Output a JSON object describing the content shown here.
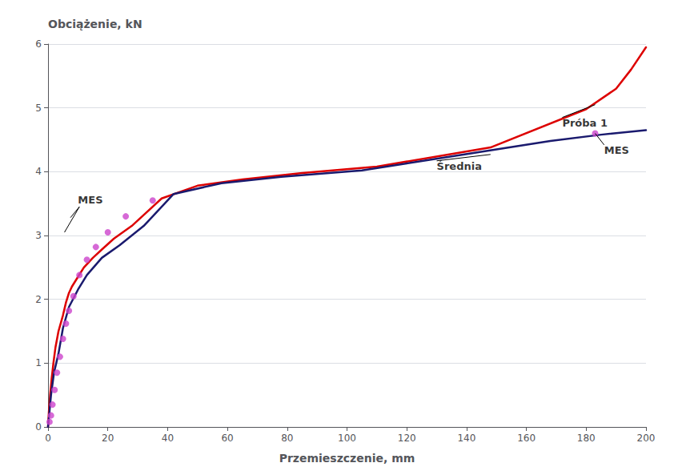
{
  "chart_data": {
    "type": "line",
    "x_label": "Przemieszczenie, mm",
    "y_label": "Obciążenie, kN",
    "xlim": [
      0,
      200
    ],
    "ylim": [
      0,
      6
    ],
    "xticks": [
      0,
      20,
      40,
      60,
      80,
      100,
      120,
      140,
      160,
      180,
      200
    ],
    "yticks": [
      0,
      1,
      2,
      3,
      4,
      5,
      6
    ],
    "grid": true,
    "series": [
      {
        "type": "line",
        "color": "#dd0000",
        "x": [
          0,
          0.3,
          0.7,
          1.2,
          1.8,
          2.5,
          3.5,
          5,
          6,
          7,
          8,
          10,
          12,
          15,
          18,
          22,
          28,
          38,
          50,
          65,
          85,
          110,
          148,
          180,
          190,
          195,
          200
        ],
        "values": [
          0,
          0.25,
          0.5,
          0.75,
          1.0,
          1.25,
          1.5,
          1.75,
          1.95,
          2.1,
          2.2,
          2.35,
          2.5,
          2.65,
          2.78,
          2.95,
          3.15,
          3.58,
          3.78,
          3.88,
          3.98,
          4.08,
          4.38,
          4.98,
          5.3,
          5.6,
          5.95
        ]
      },
      {
        "type": "line",
        "color": "#1a1a6e",
        "x": [
          0,
          0.5,
          1,
          2,
          3.5,
          5,
          7,
          10,
          13,
          18,
          24,
          32,
          42,
          58,
          78,
          105,
          135,
          168,
          185,
          200
        ],
        "values": [
          0,
          0.25,
          0.5,
          0.85,
          1.15,
          1.55,
          1.88,
          2.15,
          2.38,
          2.65,
          2.85,
          3.15,
          3.65,
          3.82,
          3.92,
          4.02,
          4.24,
          4.48,
          4.58,
          4.65
        ]
      },
      {
        "type": "scatter",
        "color": "#cc44cc",
        "marker": "circle",
        "x": [
          0.5,
          1.0,
          1.5,
          2.2,
          3.0,
          4.0,
          5.0,
          6.0,
          7.0,
          8.5,
          10.5,
          13,
          16,
          20,
          26,
          35
        ],
        "values": [
          0.08,
          0.18,
          0.35,
          0.58,
          0.85,
          1.1,
          1.38,
          1.62,
          1.82,
          2.05,
          2.38,
          2.62,
          2.82,
          3.05,
          3.3,
          3.55
        ]
      },
      {
        "type": "scatter",
        "color": "#cc44cc",
        "marker": "circle",
        "x": [
          183
        ],
        "values": [
          4.6
        ]
      }
    ],
    "annotations": [
      {
        "text": "Próba 1",
        "x": 172,
        "y": 4.85,
        "lines": [
          {
            "from": [
              172,
              4.85
            ],
            "to": [
              183,
              5.05
            ]
          }
        ]
      },
      {
        "text": "Średnia",
        "x": 130,
        "y": 4.17,
        "lines": [
          {
            "from": [
              130,
              4.17
            ],
            "to": [
              148,
              4.27
            ]
          }
        ]
      },
      {
        "text": "MES",
        "x": 10,
        "y": 3.48,
        "lines": [
          {
            "from": [
              10.5,
              3.45
            ],
            "to": [
              7.5,
              3.28
            ]
          },
          {
            "from": [
              10.5,
              3.45
            ],
            "to": [
              5.5,
              3.05
            ]
          }
        ]
      },
      {
        "text": "MES",
        "x": 186,
        "y": 4.42,
        "lines": [
          {
            "from": [
              186,
              4.42
            ],
            "to": [
              183,
              4.6
            ]
          }
        ]
      }
    ]
  }
}
